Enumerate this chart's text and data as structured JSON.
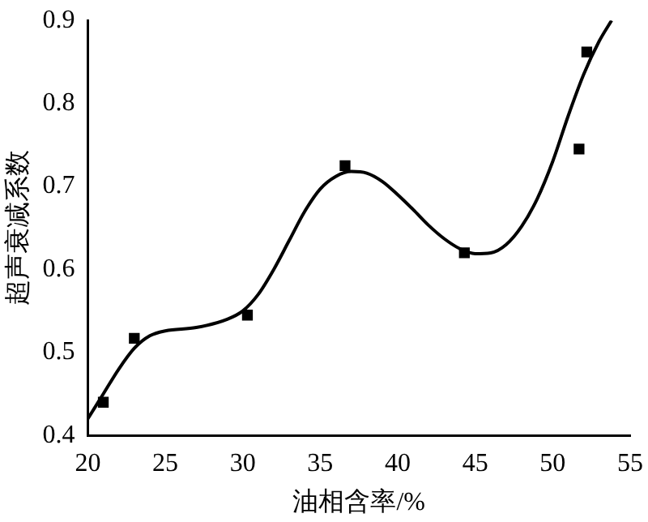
{
  "chart_data": {
    "type": "scatter",
    "xlabel": "油相含率/%",
    "ylabel": "超声衰减系数",
    "xlim": [
      20,
      55
    ],
    "xticks": [
      20,
      25,
      30,
      35,
      40,
      45,
      50,
      55
    ],
    "ylim": [
      0.4,
      0.9
    ],
    "yticks": [
      0.4,
      0.5,
      0.6,
      0.7,
      0.8,
      0.9
    ],
    "grid": false,
    "legend": false,
    "series": [
      {
        "type": "scatter",
        "color": "#000000",
        "marker": "square",
        "x": [
          21,
          23,
          30.3,
          36.6,
          44.3,
          51.7,
          52.2
        ],
        "values": [
          0.44,
          0.517,
          0.545,
          0.725,
          0.62,
          0.745,
          0.862
        ]
      },
      {
        "type": "line",
        "color": "#000000",
        "marker": "none",
        "line_style": "solid",
        "x": [
          20,
          21,
          22,
          23,
          24,
          25,
          27,
          29,
          30,
          31,
          32,
          33,
          34,
          35,
          36,
          37,
          38,
          39,
          40,
          41,
          42,
          43,
          44,
          45,
          46,
          47,
          48,
          49,
          50,
          51,
          52,
          53,
          53.8
        ],
        "values": [
          0.42,
          0.45,
          0.48,
          0.505,
          0.52,
          0.526,
          0.53,
          0.54,
          0.55,
          0.57,
          0.6,
          0.635,
          0.67,
          0.697,
          0.712,
          0.718,
          0.716,
          0.706,
          0.69,
          0.672,
          0.653,
          0.637,
          0.625,
          0.619,
          0.62,
          0.63,
          0.652,
          0.685,
          0.73,
          0.785,
          0.835,
          0.875,
          0.9
        ]
      }
    ]
  }
}
